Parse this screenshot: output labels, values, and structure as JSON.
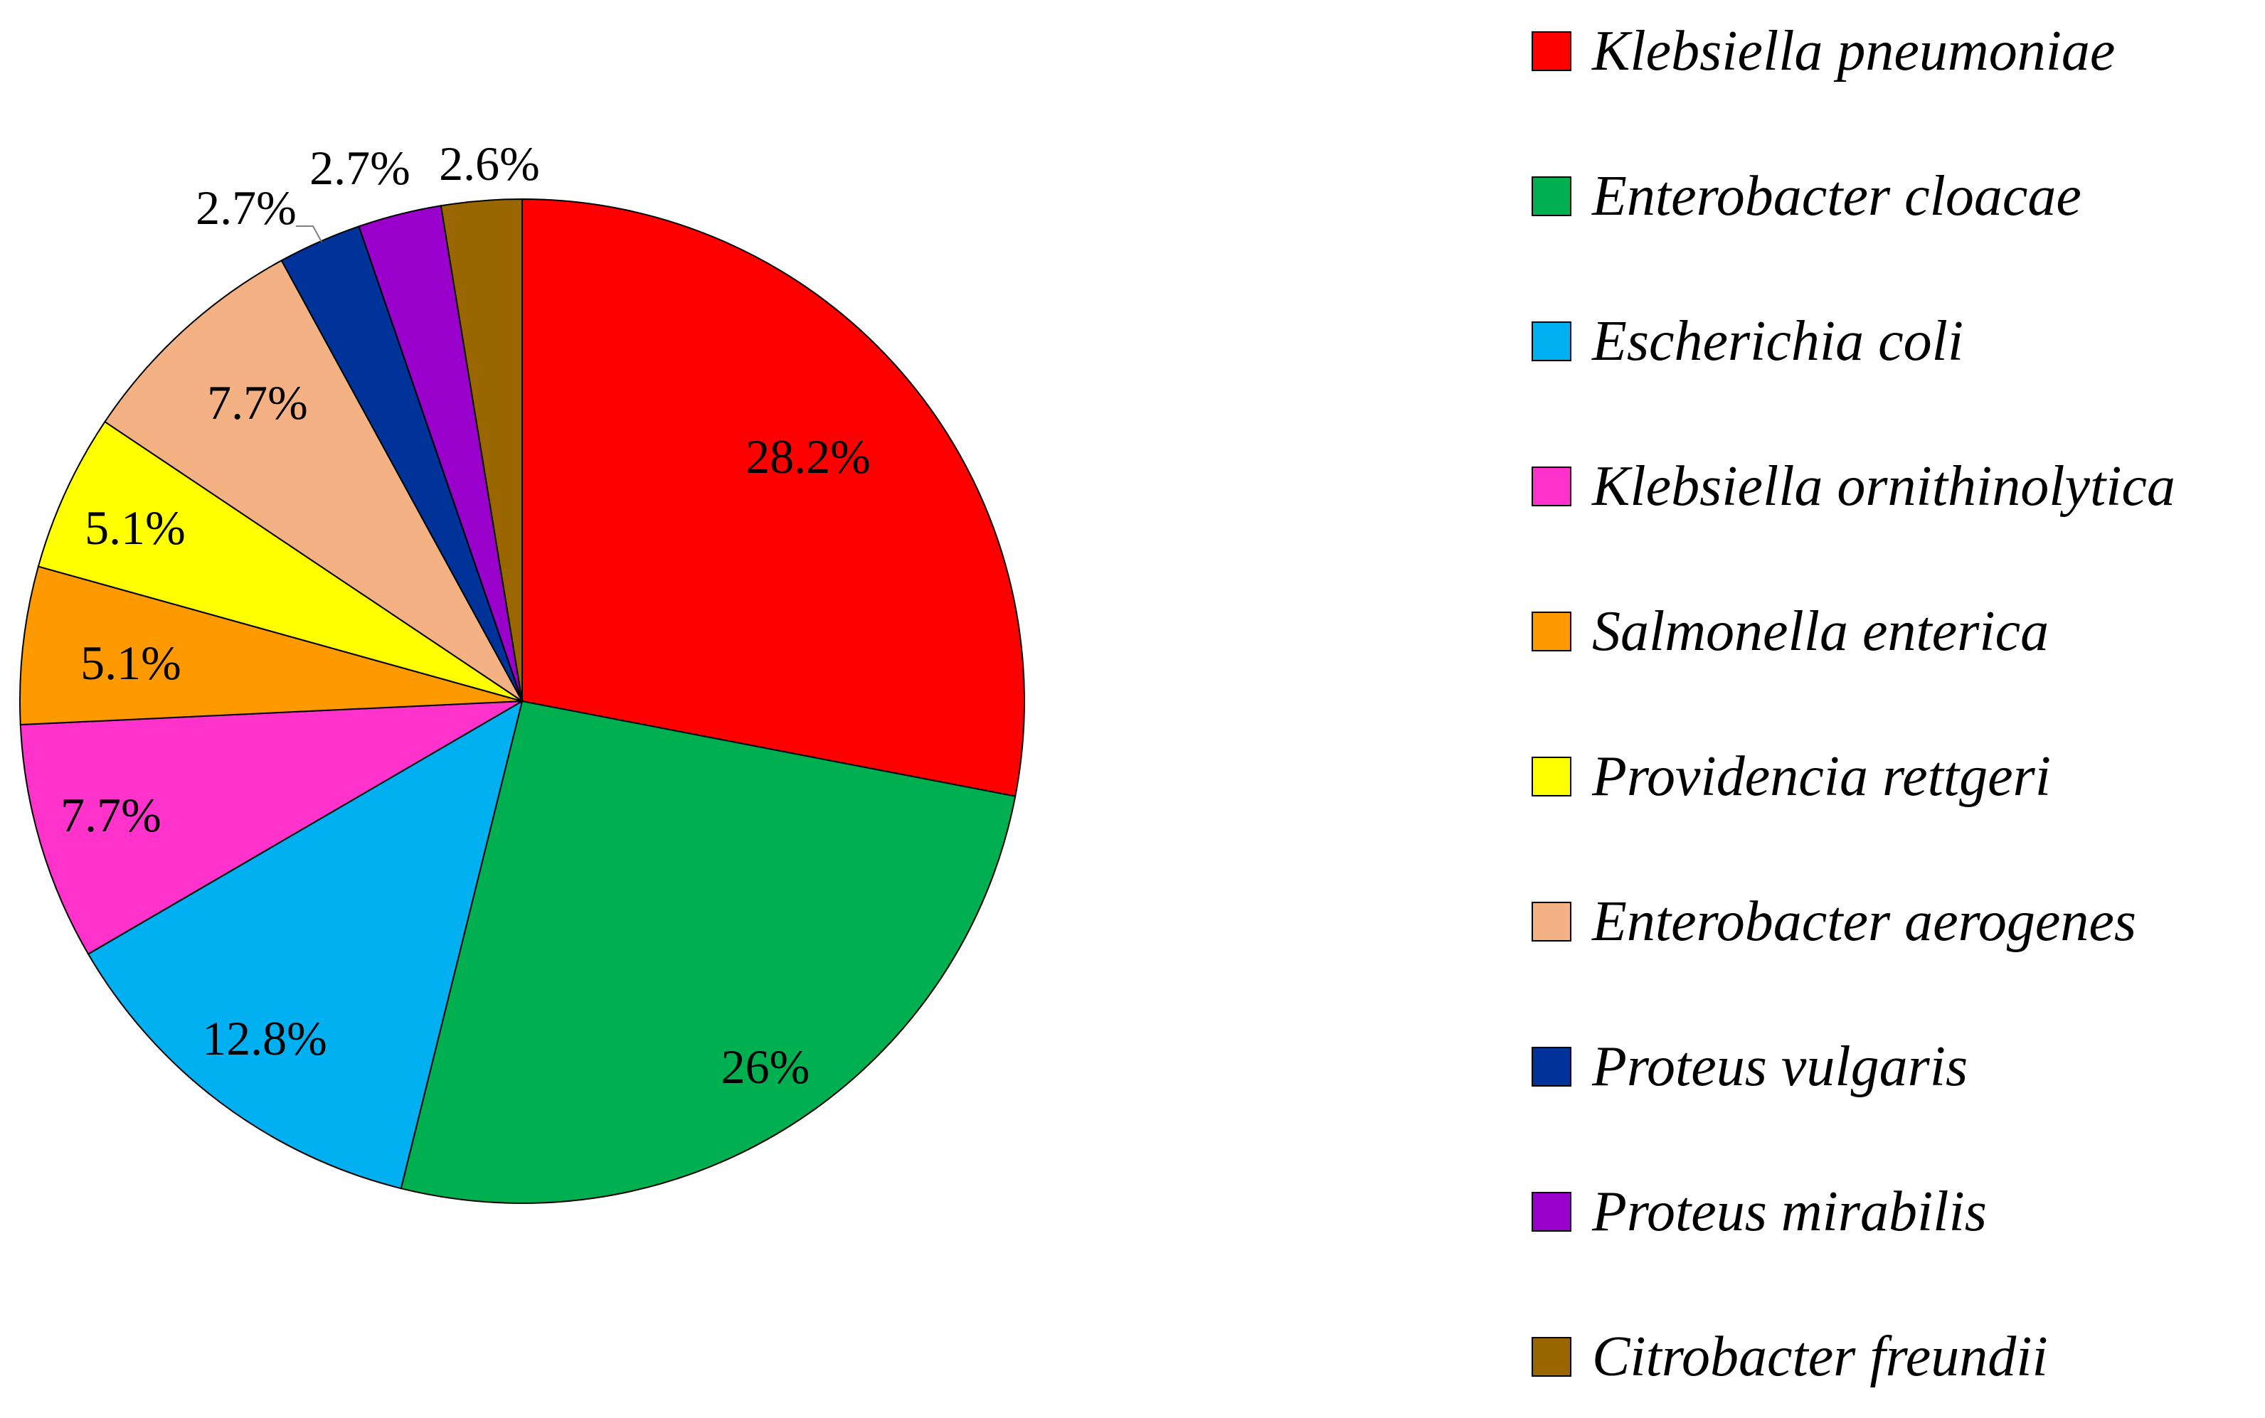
{
  "chart_data": {
    "type": "pie",
    "title": "",
    "legend_position": "right",
    "slices": [
      {
        "name": "Klebsiella pneumoniae",
        "value": 28.2,
        "label": "28.2%",
        "color": "#ff0000"
      },
      {
        "name": "Enterobacter cloacae",
        "value": 26,
        "label": "26%",
        "color": "#00b050"
      },
      {
        "name": "Escherichia coli",
        "value": 12.8,
        "label": "12.8%",
        "color": "#00b0f0"
      },
      {
        "name": "Klebsiella ornithinolytica",
        "value": 7.7,
        "label": "7.7%",
        "color": "#ff33cc"
      },
      {
        "name": "Salmonella enterica",
        "value": 5.1,
        "label": "5.1%",
        "color": "#ff9900"
      },
      {
        "name": "Providencia rettgeri",
        "value": 5.1,
        "label": "5.1%",
        "color": "#ffff00"
      },
      {
        "name": "Enterobacter aerogenes",
        "value": 7.7,
        "label": "7.7%",
        "color": "#f4b183"
      },
      {
        "name": "Proteus vulgaris",
        "value": 2.7,
        "label": "2.7%",
        "color": "#003399"
      },
      {
        "name": "Proteus mirabilis",
        "value": 2.7,
        "label": "2.7%",
        "color": "#9900cc"
      },
      {
        "name": "Citrobacter freundii",
        "value": 2.6,
        "label": "2.6%",
        "color": "#996600"
      }
    ]
  }
}
